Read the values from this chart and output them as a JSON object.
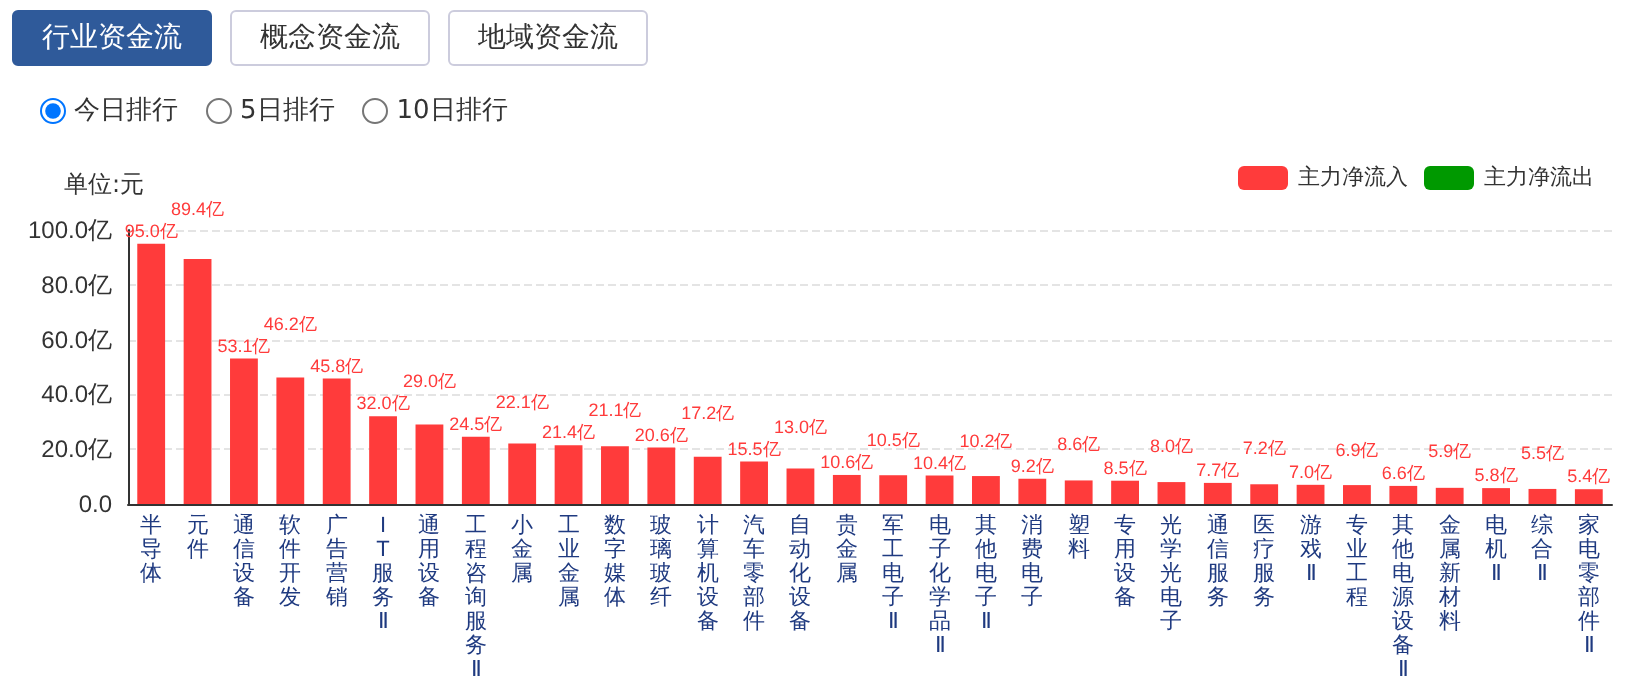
{
  "chart_data": {
    "type": "bar",
    "ylabel": "单位:元",
    "annotations": [
      "行业资金流",
      "概念资金流",
      "地域资金流",
      "今日排行",
      "5日排行",
      "10日排行"
    ],
    "categories": [
      "半导体",
      "元件",
      "通信设备",
      "软件开发",
      "广告营销",
      "IT服务Ⅱ",
      "通用设备",
      "工程咨询服务Ⅱ",
      "小金属",
      "工业金属",
      "数字媒体",
      "玻璃玻纤",
      "计算机设备",
      "汽车零部件",
      "自动化设备",
      "贵金属",
      "军工电子Ⅱ",
      "电子化学品Ⅱ",
      "其他电子Ⅱ",
      "消费电子",
      "塑料",
      "专用设备",
      "光学光电子",
      "通信服务",
      "医疗服务",
      "游戏Ⅱ",
      "专业工程",
      "其他电源设备Ⅱ",
      "金属新材料",
      "电机Ⅱ",
      "综合Ⅱ",
      "家电零部件Ⅱ"
    ],
    "series": [
      {
        "name": "主力净流入",
        "color": "#ff3b3b",
        "values": [
          95.0,
          89.4,
          53.1,
          46.2,
          45.8,
          32.0,
          29.0,
          24.5,
          22.1,
          21.4,
          21.1,
          20.6,
          17.2,
          15.5,
          13.0,
          10.6,
          10.5,
          10.4,
          10.2,
          9.2,
          8.6,
          8.5,
          8.0,
          7.7,
          7.2,
          7.0,
          6.9,
          6.6,
          5.9,
          5.8,
          5.5,
          5.4
        ],
        "value_labels": [
          "95.0亿",
          "89.4亿",
          "53.1亿",
          "46.2亿",
          "45.8亿",
          "32.0亿",
          "29.0亿",
          "24.5亿",
          "22.1亿",
          "21.4亿",
          "21.1亿",
          "20.6亿",
          "17.2亿",
          "15.5亿",
          "13.0亿",
          "10.6亿",
          "10.5亿",
          "10.4亿",
          "10.2亿",
          "9.2亿",
          "8.6亿",
          "8.5亿",
          "8.0亿",
          "7.7亿",
          "7.2亿",
          "7.0亿",
          "6.9亿",
          "6.6亿",
          "5.9亿",
          "5.8亿",
          "5.5亿",
          "5.4亿"
        ]
      },
      {
        "name": "主力净流出",
        "color": "#009900",
        "values": [
          null,
          null,
          null,
          null,
          null,
          null,
          null,
          null,
          null,
          null,
          null,
          null,
          null,
          null,
          null,
          null,
          null,
          null,
          null,
          null,
          null,
          null,
          null,
          null,
          null,
          null,
          null,
          null,
          null,
          null,
          null,
          null
        ]
      }
    ],
    "ylim": [
      0,
      100
    ],
    "yticks": [
      {
        "value": 0,
        "label": "0.0"
      },
      {
        "value": 20,
        "label": "20.0亿"
      },
      {
        "value": 40,
        "label": "40.0亿"
      },
      {
        "value": 60,
        "label": "60.0亿"
      },
      {
        "value": 80,
        "label": "80.0亿"
      },
      {
        "value": 100,
        "label": "100.0亿"
      }
    ],
    "grid": "y",
    "legend": "top right",
    "stacked": true
  }
}
